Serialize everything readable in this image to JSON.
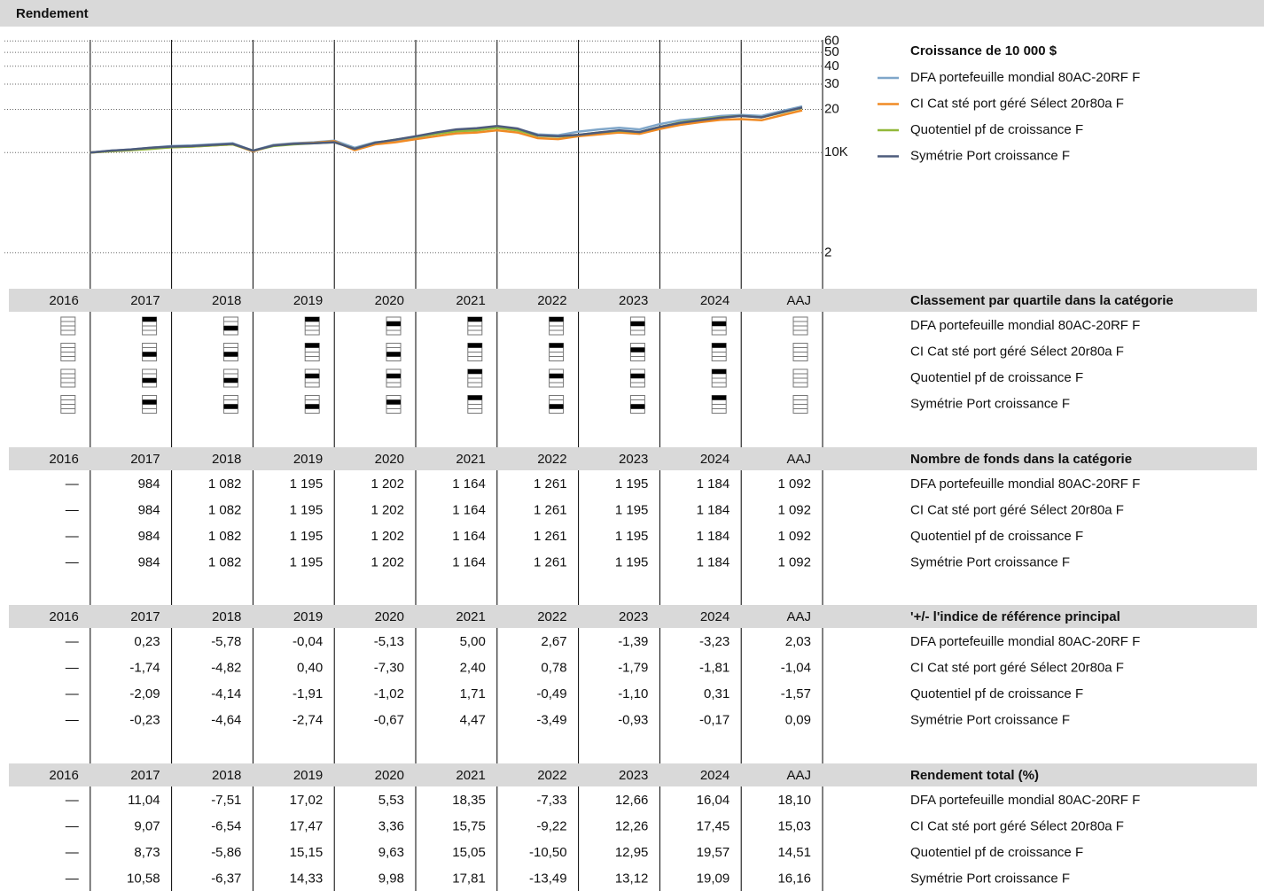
{
  "header": {
    "title": "Rendement"
  },
  "chart_data": {
    "type": "line",
    "title": "Croissance de 10 000 $",
    "x": [
      2017,
      2017.25,
      2017.5,
      2017.75,
      2018,
      2018.25,
      2018.5,
      2018.75,
      2019,
      2019.25,
      2019.5,
      2019.75,
      2020,
      2020.25,
      2020.5,
      2020.75,
      2021,
      2021.25,
      2021.5,
      2021.75,
      2022,
      2022.25,
      2022.5,
      2022.75,
      2023,
      2023.25,
      2023.5,
      2023.75,
      2024,
      2024.25,
      2024.5,
      2024.75,
      2025,
      2025.25,
      2025.5,
      2025.75
    ],
    "xlim": [
      2016,
      2026
    ],
    "ylim": [
      1.6,
      62
    ],
    "log_scale": true,
    "grid": true,
    "yticks": [
      2,
      {
        "value": 10,
        "label": "10K"
      },
      20,
      30,
      40,
      50,
      60
    ],
    "series": [
      {
        "name": "DFA portefeuille mondial 80AC-20RF F",
        "color": "#7fa6c9",
        "values": [
          10.0,
          10.3,
          10.5,
          10.8,
          11.1,
          11.2,
          11.4,
          11.6,
          10.3,
          11.3,
          11.6,
          11.8,
          12.1,
          10.8,
          11.8,
          12.1,
          12.8,
          13.5,
          14.1,
          14.3,
          15.1,
          14.6,
          13.4,
          13.2,
          14.0,
          14.5,
          14.9,
          14.5,
          15.8,
          16.8,
          17.3,
          18.0,
          18.3,
          18.0,
          19.5,
          21.0
        ]
      },
      {
        "name": "CI Cat sté port géré Sélect 20r80a F",
        "color": "#f08a24",
        "values": [
          10.0,
          10.2,
          10.4,
          10.7,
          10.9,
          11.0,
          11.2,
          11.4,
          10.2,
          11.2,
          11.5,
          11.7,
          12.0,
          10.4,
          11.4,
          11.8,
          12.4,
          13.0,
          13.6,
          13.8,
          14.3,
          13.8,
          12.6,
          12.4,
          13.0,
          13.4,
          13.8,
          13.5,
          14.6,
          15.6,
          16.3,
          16.9,
          17.1,
          16.8,
          18.2,
          19.7
        ]
      },
      {
        "name": "Quotentiel pf de croissance F",
        "color": "#92b83a",
        "values": [
          10.0,
          10.2,
          10.4,
          10.6,
          10.9,
          11.0,
          11.2,
          11.4,
          10.3,
          11.1,
          11.4,
          11.6,
          11.8,
          10.6,
          11.7,
          12.3,
          12.9,
          13.5,
          14.1,
          14.3,
          14.9,
          14.3,
          13.1,
          12.9,
          13.3,
          13.8,
          14.2,
          13.9,
          15.1,
          16.2,
          17.0,
          17.6,
          18.0,
          17.6,
          19.0,
          20.5
        ]
      },
      {
        "name": "Symétrie Port croissance F",
        "color": "#4d5b7c",
        "values": [
          10.0,
          10.3,
          10.5,
          10.8,
          11.0,
          11.1,
          11.3,
          11.5,
          10.3,
          11.2,
          11.5,
          11.6,
          11.8,
          10.6,
          11.7,
          12.3,
          13.0,
          13.8,
          14.5,
          14.8,
          15.3,
          14.7,
          13.2,
          13.0,
          13.3,
          13.8,
          14.3,
          13.9,
          15.1,
          16.1,
          16.8,
          17.5,
          18.0,
          17.6,
          19.1,
          20.6
        ]
      }
    ]
  },
  "years": [
    "2016",
    "2017",
    "2018",
    "2019",
    "2020",
    "2021",
    "2022",
    "2023",
    "2024",
    "AAJ"
  ],
  "quartiles": {
    "title": "Classement par quartile dans la catégorie",
    "rows": [
      [
        null,
        1,
        3,
        1,
        2,
        1,
        1,
        2,
        2,
        null
      ],
      [
        null,
        3,
        3,
        1,
        3,
        1,
        1,
        2,
        1,
        null
      ],
      [
        null,
        3,
        3,
        2,
        2,
        1,
        2,
        2,
        1,
        null
      ],
      [
        null,
        2,
        3,
        3,
        2,
        1,
        3,
        3,
        1,
        null
      ]
    ]
  },
  "fund_counts": {
    "title": "Nombre de fonds dans la catégorie",
    "rows": [
      [
        "—",
        "984",
        "1 082",
        "1 195",
        "1 202",
        "1 164",
        "1 261",
        "1 195",
        "1 184",
        "1 092"
      ],
      [
        "—",
        "984",
        "1 082",
        "1 195",
        "1 202",
        "1 164",
        "1 261",
        "1 195",
        "1 184",
        "1 092"
      ],
      [
        "—",
        "984",
        "1 082",
        "1 195",
        "1 202",
        "1 164",
        "1 261",
        "1 195",
        "1 184",
        "1 092"
      ],
      [
        "—",
        "984",
        "1 082",
        "1 195",
        "1 202",
        "1 164",
        "1 261",
        "1 195",
        "1 184",
        "1 092"
      ]
    ]
  },
  "benchmark_diff": {
    "title": "'+/- l'indice de référence principal",
    "rows": [
      [
        "—",
        "0,23",
        "-5,78",
        "-0,04",
        "-5,13",
        "5,00",
        "2,67",
        "-1,39",
        "-3,23",
        "2,03"
      ],
      [
        "—",
        "-1,74",
        "-4,82",
        "0,40",
        "-7,30",
        "2,40",
        "0,78",
        "-1,79",
        "-1,81",
        "-1,04"
      ],
      [
        "—",
        "-2,09",
        "-4,14",
        "-1,91",
        "-1,02",
        "1,71",
        "-0,49",
        "-1,10",
        "0,31",
        "-1,57"
      ],
      [
        "—",
        "-0,23",
        "-4,64",
        "-2,74",
        "-0,67",
        "4,47",
        "-3,49",
        "-0,93",
        "-0,17",
        "0,09"
      ]
    ]
  },
  "total_return": {
    "title": "Rendement total (%)",
    "rows": [
      [
        "—",
        "11,04",
        "-7,51",
        "17,02",
        "5,53",
        "18,35",
        "-7,33",
        "12,66",
        "16,04",
        "18,10"
      ],
      [
        "—",
        "9,07",
        "-6,54",
        "17,47",
        "3,36",
        "15,75",
        "-9,22",
        "12,26",
        "17,45",
        "15,03"
      ],
      [
        "—",
        "8,73",
        "-5,86",
        "15,15",
        "9,63",
        "15,05",
        "-10,50",
        "12,95",
        "19,57",
        "14,51"
      ],
      [
        "—",
        "10,58",
        "-6,37",
        "14,33",
        "9,98",
        "17,81",
        "-13,49",
        "13,12",
        "19,09",
        "16,16"
      ]
    ]
  }
}
